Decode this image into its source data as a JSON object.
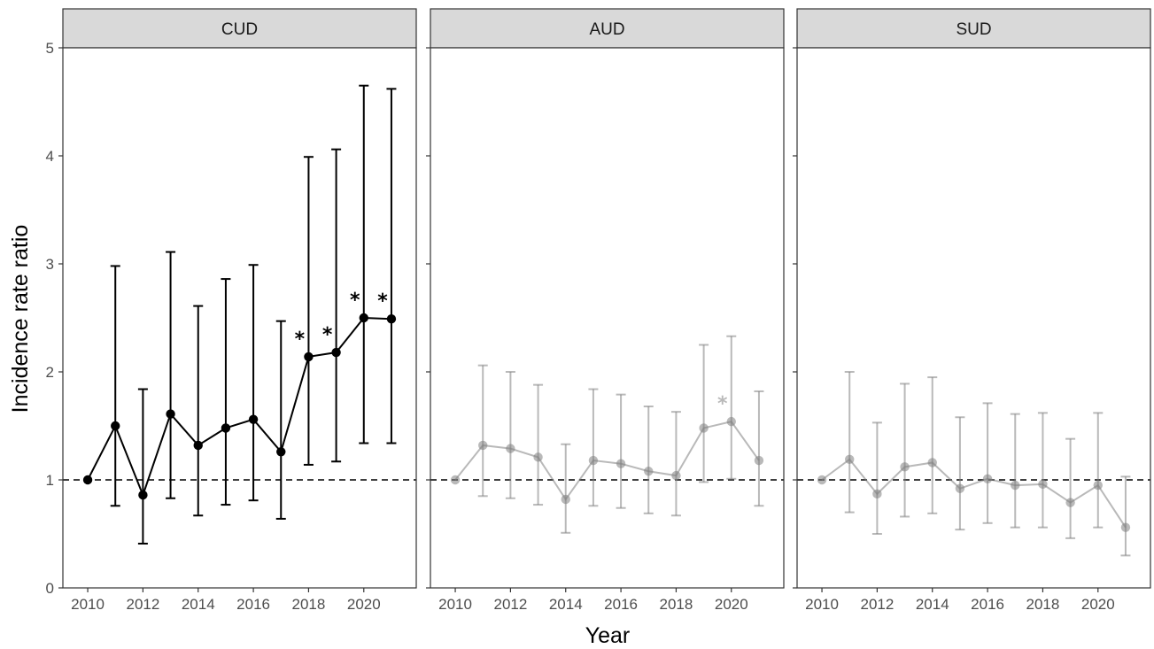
{
  "chart_data": {
    "type": "line",
    "xlabel": "Year",
    "ylabel": "Incidence rate ratio",
    "ylim": [
      0,
      5
    ],
    "xlim": [
      2009.1,
      2021.9
    ],
    "y_ticks": [
      0,
      1,
      2,
      3,
      4,
      5
    ],
    "x_ticks": [
      2010,
      2012,
      2014,
      2016,
      2018,
      2020
    ],
    "reference_line": {
      "y": 1,
      "style": "dashed"
    },
    "significance_marker": "*",
    "grid": false,
    "legend": "none",
    "panels": [
      {
        "name": "CUD",
        "color": "#000000",
        "opacity": 1,
        "points": [
          {
            "x": 2010,
            "y": 1.0,
            "lo": null,
            "hi": null,
            "sig": false
          },
          {
            "x": 2011,
            "y": 1.5,
            "lo": 0.76,
            "hi": 2.98,
            "sig": false
          },
          {
            "x": 2012,
            "y": 0.86,
            "lo": 0.41,
            "hi": 1.84,
            "sig": false
          },
          {
            "x": 2013,
            "y": 1.61,
            "lo": 0.83,
            "hi": 3.11,
            "sig": false
          },
          {
            "x": 2014,
            "y": 1.32,
            "lo": 0.67,
            "hi": 2.61,
            "sig": false
          },
          {
            "x": 2015,
            "y": 1.48,
            "lo": 0.77,
            "hi": 2.86,
            "sig": false
          },
          {
            "x": 2016,
            "y": 1.56,
            "lo": 0.81,
            "hi": 2.99,
            "sig": false
          },
          {
            "x": 2017,
            "y": 1.26,
            "lo": 0.64,
            "hi": 2.47,
            "sig": false
          },
          {
            "x": 2018,
            "y": 2.14,
            "lo": 1.14,
            "hi": 3.99,
            "sig": true
          },
          {
            "x": 2019,
            "y": 2.18,
            "lo": 1.17,
            "hi": 4.06,
            "sig": true
          },
          {
            "x": 2020,
            "y": 2.5,
            "lo": 1.34,
            "hi": 4.65,
            "sig": true
          },
          {
            "x": 2021,
            "y": 2.49,
            "lo": 1.34,
            "hi": 4.62,
            "sig": true
          }
        ]
      },
      {
        "name": "AUD",
        "color": "#808080",
        "opacity": 0.55,
        "points": [
          {
            "x": 2010,
            "y": 1.0,
            "lo": null,
            "hi": null,
            "sig": false
          },
          {
            "x": 2011,
            "y": 1.32,
            "lo": 0.85,
            "hi": 2.06,
            "sig": false
          },
          {
            "x": 2012,
            "y": 1.29,
            "lo": 0.83,
            "hi": 2.0,
            "sig": false
          },
          {
            "x": 2013,
            "y": 1.21,
            "lo": 0.77,
            "hi": 1.88,
            "sig": false
          },
          {
            "x": 2014,
            "y": 0.82,
            "lo": 0.51,
            "hi": 1.33,
            "sig": false
          },
          {
            "x": 2015,
            "y": 1.18,
            "lo": 0.76,
            "hi": 1.84,
            "sig": false
          },
          {
            "x": 2016,
            "y": 1.15,
            "lo": 0.74,
            "hi": 1.79,
            "sig": false
          },
          {
            "x": 2017,
            "y": 1.08,
            "lo": 0.69,
            "hi": 1.68,
            "sig": false
          },
          {
            "x": 2018,
            "y": 1.04,
            "lo": 0.67,
            "hi": 1.63,
            "sig": false
          },
          {
            "x": 2019,
            "y": 1.48,
            "lo": 0.98,
            "hi": 2.25,
            "sig": false
          },
          {
            "x": 2020,
            "y": 1.54,
            "lo": 1.01,
            "hi": 2.33,
            "sig": true
          },
          {
            "x": 2021,
            "y": 1.18,
            "lo": 0.76,
            "hi": 1.82,
            "sig": false
          }
        ]
      },
      {
        "name": "SUD",
        "color": "#808080",
        "opacity": 0.55,
        "points": [
          {
            "x": 2010,
            "y": 1.0,
            "lo": null,
            "hi": null,
            "sig": false
          },
          {
            "x": 2011,
            "y": 1.19,
            "lo": 0.7,
            "hi": 2.0,
            "sig": false
          },
          {
            "x": 2012,
            "y": 0.87,
            "lo": 0.5,
            "hi": 1.53,
            "sig": false
          },
          {
            "x": 2013,
            "y": 1.12,
            "lo": 0.66,
            "hi": 1.89,
            "sig": false
          },
          {
            "x": 2014,
            "y": 1.16,
            "lo": 0.69,
            "hi": 1.95,
            "sig": false
          },
          {
            "x": 2015,
            "y": 0.92,
            "lo": 0.54,
            "hi": 1.58,
            "sig": false
          },
          {
            "x": 2016,
            "y": 1.01,
            "lo": 0.6,
            "hi": 1.71,
            "sig": false
          },
          {
            "x": 2017,
            "y": 0.95,
            "lo": 0.56,
            "hi": 1.61,
            "sig": false
          },
          {
            "x": 2018,
            "y": 0.96,
            "lo": 0.56,
            "hi": 1.62,
            "sig": false
          },
          {
            "x": 2019,
            "y": 0.79,
            "lo": 0.46,
            "hi": 1.38,
            "sig": false
          },
          {
            "x": 2020,
            "y": 0.95,
            "lo": 0.56,
            "hi": 1.62,
            "sig": false
          },
          {
            "x": 2021,
            "y": 0.56,
            "lo": 0.3,
            "hi": 1.03,
            "sig": false
          }
        ]
      }
    ]
  }
}
